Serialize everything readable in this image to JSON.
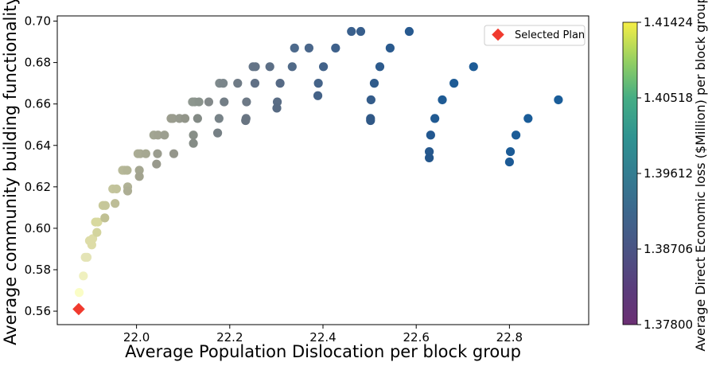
{
  "chart_data": {
    "type": "scatter",
    "title": "",
    "xlabel": "Average Population Dislocation per block group",
    "ylabel": "Average community building functionality",
    "xlim": [
      21.83,
      22.97
    ],
    "ylim": [
      0.5535,
      0.7025
    ],
    "xticks": [
      "22.0",
      "22.2",
      "22.4",
      "22.6",
      "22.8"
    ],
    "yticks": [
      "0.56",
      "0.58",
      "0.60",
      "0.62",
      "0.64",
      "0.66",
      "0.68",
      "0.70"
    ],
    "grid": false,
    "legend": {
      "position": "top-right",
      "entries": [
        "Selected Plan"
      ]
    },
    "colorbar": {
      "label": "Average Direct Economic loss ($Million) per block group",
      "colormap": "viridis",
      "range": [
        1.378,
        1.41424
      ],
      "ticks": [
        "1.37800",
        "1.38706",
        "1.39612",
        "1.40518",
        "1.41424"
      ]
    },
    "selected_plan": {
      "name": "Selected Plan",
      "x": 21.876,
      "y": 0.561,
      "color": "#f03a2e"
    },
    "points": [
      {
        "x": 21.877,
        "y": 0.569,
        "c": "#fafdc6"
      },
      {
        "x": 21.886,
        "y": 0.577,
        "c": "#eff0bf"
      },
      {
        "x": 21.89,
        "y": 0.586,
        "c": "#e4e4b6"
      },
      {
        "x": 21.894,
        "y": 0.586,
        "c": "#e4e4b6"
      },
      {
        "x": 21.899,
        "y": 0.594,
        "c": "#dddca7"
      },
      {
        "x": 21.904,
        "y": 0.592,
        "c": "#dddca7"
      },
      {
        "x": 21.906,
        "y": 0.595,
        "c": "#dddca7"
      },
      {
        "x": 21.912,
        "y": 0.603,
        "c": "#d8d99f"
      },
      {
        "x": 21.917,
        "y": 0.603,
        "c": "#d8d99f"
      },
      {
        "x": 21.915,
        "y": 0.598,
        "c": "#d3d49d"
      },
      {
        "x": 21.928,
        "y": 0.611,
        "c": "#c8c999"
      },
      {
        "x": 21.933,
        "y": 0.611,
        "c": "#c6c79a"
      },
      {
        "x": 21.932,
        "y": 0.605,
        "c": "#c0c093"
      },
      {
        "x": 21.949,
        "y": 0.619,
        "c": "#c4c59d"
      },
      {
        "x": 21.957,
        "y": 0.619,
        "c": "#c2c39b"
      },
      {
        "x": 21.954,
        "y": 0.612,
        "c": "#bdbd97"
      },
      {
        "x": 21.97,
        "y": 0.628,
        "c": "#b8ba9a"
      },
      {
        "x": 21.974,
        "y": 0.628,
        "c": "#b6b898"
      },
      {
        "x": 21.98,
        "y": 0.628,
        "c": "#b3b596"
      },
      {
        "x": 21.981,
        "y": 0.62,
        "c": "#b0b296"
      },
      {
        "x": 21.981,
        "y": 0.618,
        "c": "#adae94"
      },
      {
        "x": 22.003,
        "y": 0.636,
        "c": "#abad95"
      },
      {
        "x": 22.008,
        "y": 0.636,
        "c": "#a9ab94"
      },
      {
        "x": 22.02,
        "y": 0.636,
        "c": "#a6a892"
      },
      {
        "x": 22.006,
        "y": 0.628,
        "c": "#a4a690"
      },
      {
        "x": 22.006,
        "y": 0.625,
        "c": "#a2a38f"
      },
      {
        "x": 22.037,
        "y": 0.645,
        "c": "#a3a693"
      },
      {
        "x": 22.046,
        "y": 0.645,
        "c": "#a1a391"
      },
      {
        "x": 22.06,
        "y": 0.645,
        "c": "#9c9f90"
      },
      {
        "x": 22.045,
        "y": 0.636,
        "c": "#9a9c8e"
      },
      {
        "x": 22.043,
        "y": 0.631,
        "c": "#98998c"
      },
      {
        "x": 22.074,
        "y": 0.653,
        "c": "#9c9e8f"
      },
      {
        "x": 22.078,
        "y": 0.653,
        "c": "#9a9c8e"
      },
      {
        "x": 22.092,
        "y": 0.653,
        "c": "#979a8e"
      },
      {
        "x": 22.08,
        "y": 0.636,
        "c": "#94968b"
      },
      {
        "x": 22.104,
        "y": 0.653,
        "c": "#929589"
      },
      {
        "x": 22.12,
        "y": 0.661,
        "c": "#8f9890"
      },
      {
        "x": 22.125,
        "y": 0.661,
        "c": "#8d968e"
      },
      {
        "x": 22.134,
        "y": 0.661,
        "c": "#8a938c"
      },
      {
        "x": 22.122,
        "y": 0.645,
        "c": "#878e87"
      },
      {
        "x": 22.122,
        "y": 0.641,
        "c": "#858c86"
      },
      {
        "x": 22.131,
        "y": 0.653,
        "c": "#838a85"
      },
      {
        "x": 22.155,
        "y": 0.661,
        "c": "#83898a"
      },
      {
        "x": 22.178,
        "y": 0.67,
        "c": "#7f8a8d"
      },
      {
        "x": 22.186,
        "y": 0.67,
        "c": "#7b868b"
      },
      {
        "x": 22.177,
        "y": 0.653,
        "c": "#788388"
      },
      {
        "x": 22.174,
        "y": 0.646,
        "c": "#768085"
      },
      {
        "x": 22.188,
        "y": 0.661,
        "c": "#737e86"
      },
      {
        "x": 22.217,
        "y": 0.67,
        "c": "#6f7b86"
      },
      {
        "x": 22.236,
        "y": 0.661,
        "c": "#6d7986"
      },
      {
        "x": 22.235,
        "y": 0.653,
        "c": "#6a7684"
      },
      {
        "x": 22.234,
        "y": 0.652,
        "c": "#687481"
      },
      {
        "x": 22.25,
        "y": 0.678,
        "c": "#667689"
      },
      {
        "x": 22.255,
        "y": 0.678,
        "c": "#647487"
      },
      {
        "x": 22.254,
        "y": 0.67,
        "c": "#607085"
      },
      {
        "x": 22.286,
        "y": 0.678,
        "c": "#5c6f86"
      },
      {
        "x": 22.302,
        "y": 0.661,
        "c": "#5a6d85"
      },
      {
        "x": 22.301,
        "y": 0.658,
        "c": "#586b83"
      },
      {
        "x": 22.308,
        "y": 0.67,
        "c": "#566a85"
      },
      {
        "x": 22.334,
        "y": 0.678,
        "c": "#516a88"
      },
      {
        "x": 22.339,
        "y": 0.687,
        "c": "#4d6a8c"
      },
      {
        "x": 22.37,
        "y": 0.687,
        "c": "#4a678b"
      },
      {
        "x": 22.39,
        "y": 0.67,
        "c": "#466489"
      },
      {
        "x": 22.389,
        "y": 0.664,
        "c": "#446287"
      },
      {
        "x": 22.401,
        "y": 0.678,
        "c": "#426289"
      },
      {
        "x": 22.427,
        "y": 0.687,
        "c": "#3e618b"
      },
      {
        "x": 22.461,
        "y": 0.695,
        "c": "#3a608d"
      },
      {
        "x": 22.481,
        "y": 0.695,
        "c": "#375e8c"
      },
      {
        "x": 22.503,
        "y": 0.662,
        "c": "#345c8a"
      },
      {
        "x": 22.502,
        "y": 0.653,
        "c": "#325a88"
      },
      {
        "x": 22.502,
        "y": 0.652,
        "c": "#305886"
      },
      {
        "x": 22.51,
        "y": 0.67,
        "c": "#2f5b8b"
      },
      {
        "x": 22.522,
        "y": 0.678,
        "c": "#2d5b8d"
      },
      {
        "x": 22.544,
        "y": 0.687,
        "c": "#2a5a8e"
      },
      {
        "x": 22.585,
        "y": 0.695,
        "c": "#27598f"
      },
      {
        "x": 22.628,
        "y": 0.637,
        "c": "#26588d"
      },
      {
        "x": 22.628,
        "y": 0.634,
        "c": "#24568b"
      },
      {
        "x": 22.631,
        "y": 0.645,
        "c": "#235890"
      },
      {
        "x": 22.64,
        "y": 0.653,
        "c": "#215a92"
      },
      {
        "x": 22.656,
        "y": 0.662,
        "c": "#1f5b94"
      },
      {
        "x": 22.681,
        "y": 0.67,
        "c": "#1e5b95"
      },
      {
        "x": 22.723,
        "y": 0.678,
        "c": "#1d5b96"
      },
      {
        "x": 22.8,
        "y": 0.632,
        "c": "#1c5a95"
      },
      {
        "x": 22.802,
        "y": 0.637,
        "c": "#1b5b96"
      },
      {
        "x": 22.814,
        "y": 0.645,
        "c": "#1b5c97"
      },
      {
        "x": 22.84,
        "y": 0.653,
        "c": "#1a5c98"
      },
      {
        "x": 22.905,
        "y": 0.662,
        "c": "#1a5d99"
      }
    ]
  }
}
